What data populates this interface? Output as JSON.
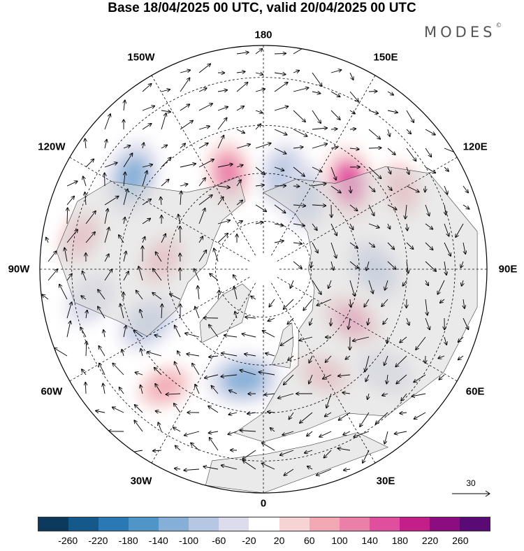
{
  "title": "Base 18/04/2025 00 UTC, valid 20/04/2025 00 UTC",
  "brand": {
    "name": "MODES",
    "mark": "©"
  },
  "projection": "north-polar-stereographic",
  "longitude_labels": [
    "180",
    "150E",
    "120E",
    "90E",
    "60E",
    "30E",
    "0",
    "30W",
    "60W",
    "90W",
    "120W",
    "150W"
  ],
  "vector_scale": {
    "label": "30"
  },
  "colorbar": {
    "tick_labels": [
      "-260",
      "-220",
      "-180",
      "-140",
      "-100",
      "-60",
      "-20",
      "20",
      "60",
      "100",
      "140",
      "180",
      "220",
      "260"
    ],
    "colors": [
      "#0b3a5c",
      "#15598a",
      "#2a78b4",
      "#4f95c7",
      "#86afd7",
      "#b6c7e4",
      "#dcdcec",
      "#ffffff",
      "#f7d4d4",
      "#f2a9b4",
      "#ea7fa8",
      "#df4f9d",
      "#c41e8a",
      "#8c0d7f",
      "#5a0a74"
    ]
  },
  "anomaly_centers": [
    {
      "lon": -125,
      "lat": 40,
      "value": -140
    },
    {
      "lon": -65,
      "lat": 50,
      "value": -100
    },
    {
      "lon": -100,
      "lat": 32,
      "value": 60
    },
    {
      "lon": -95,
      "lat": 58,
      "value": 60
    },
    {
      "lon": -80,
      "lat": 35,
      "value": -60
    },
    {
      "lon": -160,
      "lat": 58,
      "value": 100
    },
    {
      "lon": 168,
      "lat": 60,
      "value": -100
    },
    {
      "lon": 150,
      "lat": 64,
      "value": -100
    },
    {
      "lon": 135,
      "lat": 52,
      "value": 140
    },
    {
      "lon": 90,
      "lat": 55,
      "value": -100
    },
    {
      "lon": 60,
      "lat": 58,
      "value": 100
    },
    {
      "lon": 50,
      "lat": 40,
      "value": -60
    },
    {
      "lon": -10,
      "lat": 55,
      "value": -140
    },
    {
      "lon": 30,
      "lat": 52,
      "value": 60
    },
    {
      "lon": 120,
      "lat": 40,
      "value": 60
    },
    {
      "lon": -40,
      "lat": 42,
      "value": 60
    }
  ]
}
